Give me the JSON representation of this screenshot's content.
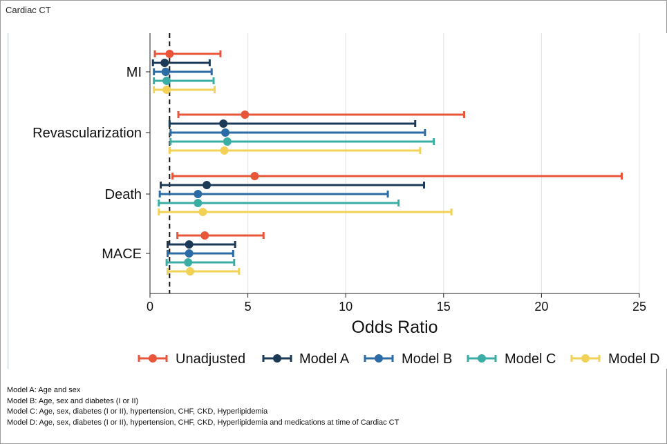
{
  "figure_title": "Cardiac CT",
  "colors": {
    "Unadjusted": "#e8563a",
    "Model A": "#1b3a57",
    "Model B": "#2b6ba6",
    "Model C": "#3aaea4",
    "Model D": "#f2d256"
  },
  "footnotes": [
    "Model A: Age and sex",
    "Model B: Age, sex and diabetes (I or II)",
    "Model C: Age, sex, diabetes (I or II), hypertension, CHF, CKD, Hyperlipidemia",
    "Model D: Age, sex, diabetes (I or II), hypertension, CHF, CKD, Hyperlipidemia and medications at time of Cardiac CT"
  ],
  "chart_data": {
    "type": "forest",
    "xlabel": "Odds Ratio",
    "xlim": [
      0,
      25
    ],
    "xticks": [
      0,
      5,
      10,
      15,
      20,
      25
    ],
    "reference_line": 1,
    "grid": "vertical",
    "legend_position": "bottom",
    "categories": [
      "MI",
      "Revascularization",
      "Death",
      "MACE"
    ],
    "series": [
      {
        "name": "Unadjusted",
        "estimates": [
          1.0,
          4.85,
          5.35,
          2.8
        ],
        "lower": [
          0.25,
          1.45,
          1.15,
          1.4
        ],
        "upper": [
          3.6,
          16.05,
          24.1,
          5.8
        ]
      },
      {
        "name": "Model A",
        "estimates": [
          0.75,
          3.75,
          2.9,
          2.0
        ],
        "lower": [
          0.15,
          1.0,
          0.55,
          0.9
        ],
        "upper": [
          3.05,
          13.55,
          14.0,
          4.35
        ]
      },
      {
        "name": "Model B",
        "estimates": [
          0.8,
          3.85,
          2.45,
          2.0
        ],
        "lower": [
          0.2,
          1.05,
          0.5,
          0.9
        ],
        "upper": [
          3.15,
          14.05,
          12.15,
          4.25
        ]
      },
      {
        "name": "Model C",
        "estimates": [
          0.85,
          3.95,
          2.45,
          1.95
        ],
        "lower": [
          0.2,
          1.05,
          0.45,
          0.85
        ],
        "upper": [
          3.25,
          14.5,
          12.7,
          4.3
        ]
      },
      {
        "name": "Model D",
        "estimates": [
          0.85,
          3.8,
          2.7,
          2.05
        ],
        "lower": [
          0.2,
          1.0,
          0.45,
          0.9
        ],
        "upper": [
          3.3,
          13.8,
          15.4,
          4.55
        ]
      }
    ]
  }
}
